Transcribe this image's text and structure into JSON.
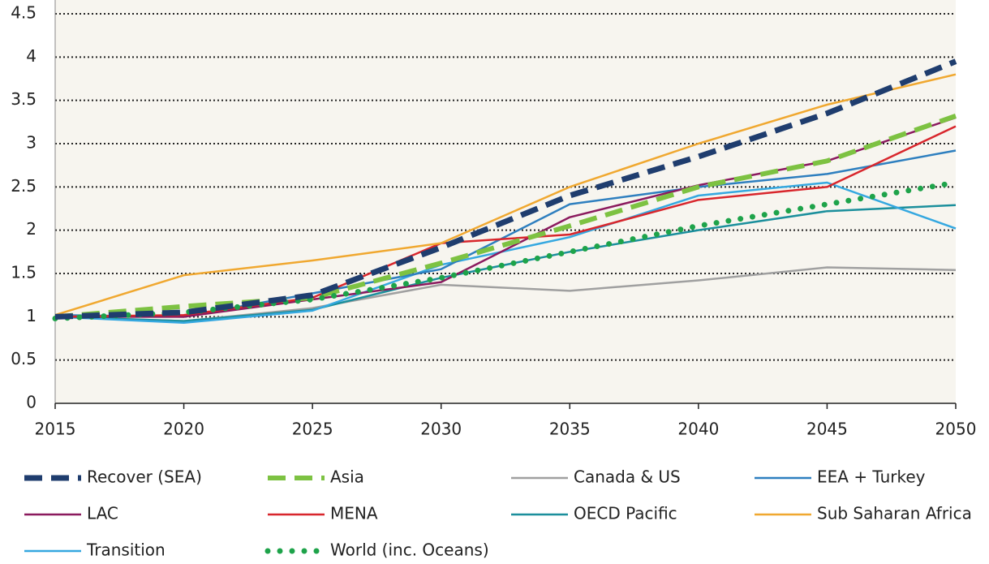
{
  "chart_data": {
    "type": "line",
    "x": [
      2015,
      2020,
      2025,
      2030,
      2035,
      2040,
      2045,
      2050
    ],
    "xlim": [
      2015,
      2050
    ],
    "xticks": [
      2015,
      2020,
      2025,
      2030,
      2035,
      2040,
      2045,
      2050
    ],
    "ylim": [
      0,
      4.5
    ],
    "yticks": [
      0,
      0.5,
      1,
      1.5,
      2,
      2.5,
      3,
      3.5,
      4,
      4.5
    ],
    "grid": true,
    "series": [
      {
        "name": "Recover (SEA)",
        "color": "#1f3d6e",
        "style": "dashed",
        "values": [
          1.0,
          1.05,
          1.25,
          1.8,
          2.4,
          2.85,
          3.35,
          3.95
        ]
      },
      {
        "name": "Asia",
        "color": "#7dc242",
        "style": "dashed",
        "values": [
          1.0,
          1.12,
          1.22,
          1.62,
          2.05,
          2.5,
          2.8,
          3.32
        ]
      },
      {
        "name": "Canada & US",
        "color": "#a0a0a0",
        "style": "solid",
        "values": [
          1.0,
          0.95,
          1.1,
          1.37,
          1.3,
          1.42,
          1.57,
          1.54
        ]
      },
      {
        "name": "EEA + Turkey",
        "color": "#2e7fbf",
        "style": "solid",
        "values": [
          1.02,
          1.0,
          1.27,
          1.55,
          2.3,
          2.5,
          2.65,
          2.92
        ]
      },
      {
        "name": "LAC",
        "color": "#8b1a5e",
        "style": "solid",
        "values": [
          1.0,
          1.0,
          1.2,
          1.4,
          2.15,
          2.52,
          2.8,
          3.3
        ]
      },
      {
        "name": "MENA",
        "color": "#d8262c",
        "style": "solid",
        "values": [
          1.0,
          1.02,
          1.22,
          1.85,
          1.95,
          2.35,
          2.5,
          3.2
        ]
      },
      {
        "name": "OECD Pacific",
        "color": "#1b8f9c",
        "style": "solid",
        "values": [
          1.0,
          0.95,
          1.08,
          1.45,
          1.75,
          2.0,
          2.22,
          2.29
        ]
      },
      {
        "name": "Sub Saharan Africa",
        "color": "#f0a830",
        "style": "solid",
        "values": [
          1.02,
          1.48,
          1.65,
          1.85,
          2.5,
          3.0,
          3.45,
          3.8
        ]
      },
      {
        "name": "Transition",
        "color": "#35a8e0",
        "style": "solid",
        "values": [
          1.0,
          0.93,
          1.07,
          1.6,
          1.92,
          2.4,
          2.55,
          2.02
        ]
      },
      {
        "name": "World (inc. Oceans)",
        "color": "#1ea34a",
        "style": "dotted",
        "values": [
          0.98,
          1.05,
          1.2,
          1.45,
          1.75,
          2.05,
          2.3,
          2.55
        ]
      }
    ]
  }
}
